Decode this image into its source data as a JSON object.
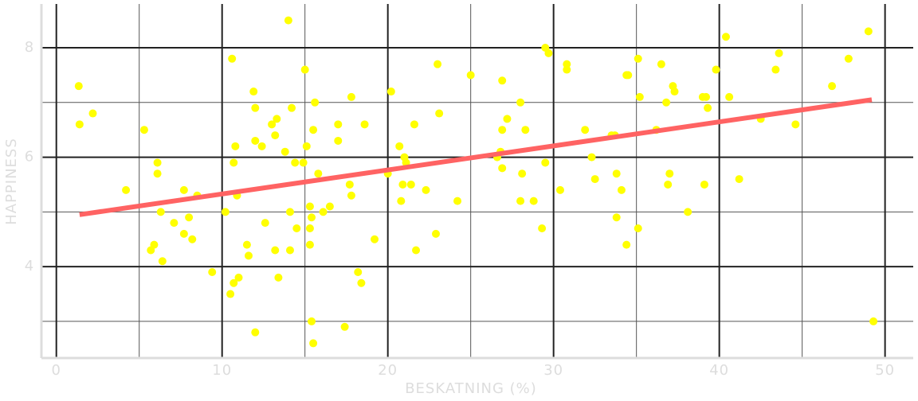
{
  "chart_data": {
    "type": "scatter",
    "x_label": "BESKATNING (%)",
    "y_label": "HAPPINESS",
    "xlim": [
      -0.9,
      51.7
    ],
    "ylim": [
      2.33,
      8.8
    ],
    "xticks": [
      0,
      10,
      20,
      30,
      40,
      50
    ],
    "yticks": [
      4,
      6,
      8
    ],
    "xminor": [
      5,
      15,
      25,
      35,
      45
    ],
    "yminor": [
      3,
      5,
      7
    ],
    "grid": true,
    "series": [
      {
        "color": "#ffff00",
        "x": [
          1.35,
          1.4,
          2.2,
          4.2,
          5.3,
          6.1,
          6.1,
          6.3,
          5.9,
          5.7,
          6.4,
          7.1,
          7.7,
          7.7,
          8.0,
          8.2,
          8.5,
          9.4,
          10.2,
          10.6,
          10.5,
          10.7,
          11.0,
          10.7,
          10.8,
          10.9,
          11.5,
          11.6,
          11.9,
          12.0,
          12.0,
          12.4,
          12.6,
          13.0,
          13.3,
          13.2,
          13.2,
          13.4,
          12.0,
          13.8,
          14.0,
          14.2,
          14.1,
          14.1,
          14.4,
          14.5,
          14.9,
          15.0,
          15.1,
          15.3,
          15.3,
          15.3,
          15.4,
          15.5,
          15.6,
          15.8,
          15.4,
          15.5,
          16.1,
          16.5,
          17.0,
          17.0,
          17.4,
          17.8,
          17.7,
          17.8,
          18.2,
          18.4,
          18.6,
          19.2,
          20.0,
          20.2,
          20.7,
          20.8,
          20.9,
          21.0,
          21.1,
          21.4,
          21.6,
          21.7,
          22.3,
          22.9,
          23.0,
          23.1,
          24.2,
          25.0,
          26.6,
          26.8,
          26.9,
          26.9,
          26.9,
          27.2,
          28.0,
          28.1,
          28.0,
          28.3,
          28.8,
          29.3,
          29.5,
          29.7,
          29.5,
          30.4,
          30.8,
          30.8,
          31.9,
          32.3,
          32.5,
          33.5,
          33.7,
          33.8,
          33.8,
          34.1,
          34.4,
          34.5,
          34.4,
          35.1,
          35.2,
          35.1,
          36.2,
          36.5,
          36.8,
          36.9,
          37.0,
          37.2,
          37.3,
          38.1,
          39.0,
          39.2,
          39.1,
          39.3,
          39.8,
          40.4,
          40.6,
          41.2,
          42.5,
          43.4,
          43.6,
          44.6,
          46.8,
          47.8,
          49.0,
          49.3
        ],
        "values": [
          7.3,
          6.6,
          6.8,
          5.4,
          6.5,
          5.9,
          5.7,
          5.0,
          4.4,
          4.3,
          4.1,
          4.8,
          5.4,
          4.6,
          4.9,
          4.5,
          5.3,
          3.9,
          5.0,
          7.8,
          3.5,
          3.7,
          3.8,
          5.9,
          6.2,
          5.3,
          4.4,
          4.2,
          7.2,
          6.9,
          6.3,
          6.2,
          4.8,
          6.6,
          6.7,
          6.4,
          4.3,
          3.8,
          2.8,
          6.1,
          8.5,
          6.9,
          5.0,
          4.3,
          5.9,
          4.7,
          5.9,
          7.6,
          6.2,
          5.1,
          4.7,
          4.4,
          4.9,
          6.5,
          7.0,
          5.7,
          3.0,
          2.6,
          5.0,
          5.1,
          6.6,
          6.3,
          2.9,
          7.1,
          5.5,
          5.3,
          3.9,
          3.7,
          6.6,
          4.5,
          5.7,
          7.2,
          6.2,
          5.2,
          5.5,
          6.0,
          5.9,
          5.5,
          6.6,
          4.3,
          5.4,
          4.6,
          7.7,
          6.8,
          5.2,
          7.5,
          6.0,
          6.1,
          6.5,
          7.4,
          5.8,
          6.7,
          7.0,
          5.7,
          5.2,
          6.5,
          5.2,
          4.7,
          8.0,
          7.9,
          5.9,
          5.4,
          7.7,
          7.6,
          6.5,
          6.0,
          5.6,
          6.4,
          6.4,
          5.7,
          4.9,
          5.4,
          7.5,
          7.5,
          4.4,
          7.8,
          7.1,
          4.7,
          6.5,
          7.7,
          7.0,
          5.5,
          5.7,
          7.3,
          7.2,
          5.0,
          7.1,
          7.1,
          5.5,
          6.9,
          7.6,
          8.2,
          7.1,
          5.6,
          6.7,
          7.6,
          7.9,
          6.6,
          7.3,
          7.8,
          8.3,
          3.0
        ]
      }
    ],
    "trend_line": {
      "color": "#ff6363",
      "x": [
        1.4,
        49.2
      ],
      "values": [
        4.95,
        7.05
      ]
    }
  }
}
